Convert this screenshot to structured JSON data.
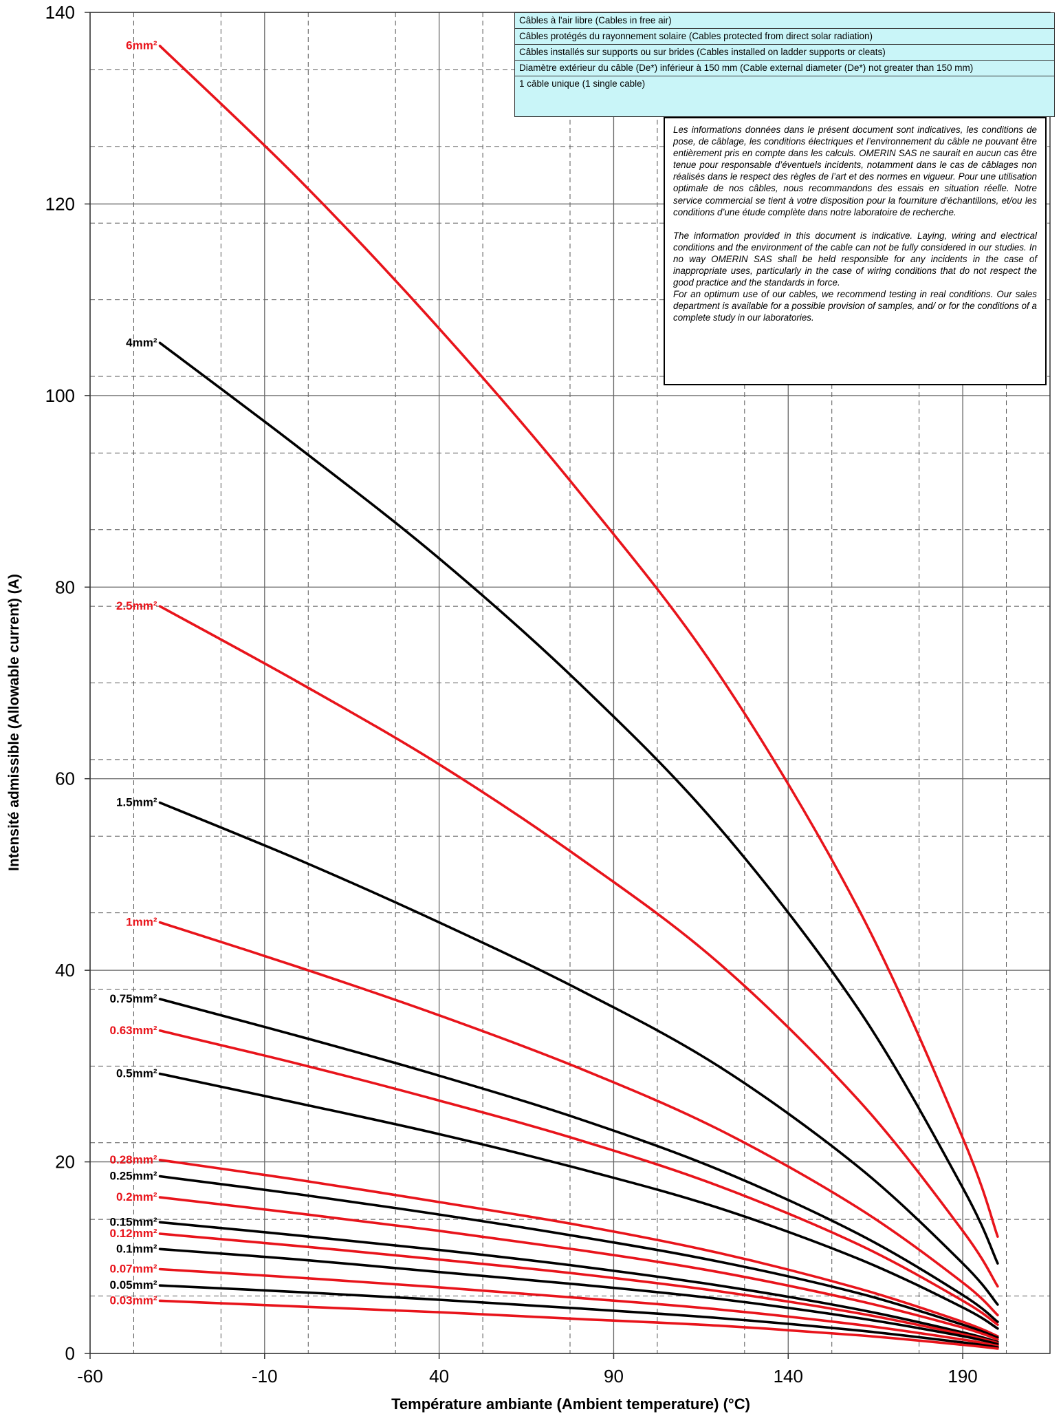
{
  "chart_data": {
    "type": "line",
    "xlabel": "Température ambiante (Ambient temperature) (°C)",
    "ylabel": "Intensité admissible (Allowable current) (A)",
    "xlim": [
      -60,
      215
    ],
    "ylim": [
      0,
      140
    ],
    "x_ticks": [
      -60,
      -10,
      40,
      90,
      140,
      190
    ],
    "y_ticks": [
      0,
      20,
      40,
      60,
      80,
      100,
      120,
      140
    ],
    "x_tick_labels": [
      "-60",
      "-10",
      "40",
      "90",
      "140",
      "190"
    ],
    "y_tick_labels": [
      "0",
      "20",
      "40",
      "60",
      "80",
      "100",
      "120",
      "140"
    ],
    "grid": true,
    "x": [
      -40,
      0,
      40,
      80,
      120,
      160,
      190,
      200
    ],
    "series": [
      {
        "name": "6mm²",
        "color": "#e8141b",
        "values": [
          136.5,
          122.5,
          107,
          90,
          71,
          46.5,
          22.5,
          12.2
        ]
      },
      {
        "name": "4mm²",
        "color": "#000000",
        "values": [
          105.5,
          94.5,
          83,
          70,
          55,
          36,
          17.3,
          9.4
        ]
      },
      {
        "name": "2.5mm²",
        "color": "#e8141b",
        "values": [
          78,
          70,
          61.5,
          51.8,
          40.8,
          26.5,
          12.8,
          7
        ]
      },
      {
        "name": "1.5mm²",
        "color": "#000000",
        "values": [
          57.5,
          51.5,
          45,
          38,
          30,
          19.5,
          9.4,
          5.1
        ]
      },
      {
        "name": "1mm²",
        "color": "#e8141b",
        "values": [
          45,
          40.3,
          35.3,
          29.8,
          23.4,
          15.2,
          7.4,
          4
        ]
      },
      {
        "name": "0.75mm²",
        "color": "#000000",
        "values": [
          37,
          33.1,
          29,
          24.5,
          19.2,
          12.5,
          6.1,
          3.3
        ]
      },
      {
        "name": "0.63mm²",
        "color": "#e8141b",
        "values": [
          33.7,
          30.2,
          26.4,
          22.3,
          17.5,
          11.4,
          5.5,
          3
        ]
      },
      {
        "name": "0.5mm²",
        "color": "#000000",
        "values": [
          29.2,
          26.1,
          22.9,
          19.3,
          15.2,
          9.9,
          4.8,
          2.6
        ]
      },
      {
        "name": "0.28mm²",
        "color": "#e8141b",
        "values": [
          20.2,
          18.1,
          15.8,
          13.4,
          10.5,
          6.8,
          3.3,
          1.8
        ]
      },
      {
        "name": "0.25mm²",
        "color": "#000000",
        "values": [
          18.5,
          16.6,
          14.5,
          12.2,
          9.6,
          6.3,
          3,
          1.65
        ]
      },
      {
        "name": "0.2mm²",
        "color": "#e8141b",
        "values": [
          16.3,
          14.6,
          12.8,
          10.8,
          8.5,
          5.5,
          2.7,
          1.45
        ]
      },
      {
        "name": "0.15mm²",
        "color": "#000000",
        "values": [
          13.7,
          12.3,
          10.8,
          9.1,
          7.1,
          4.6,
          2.2,
          1.2
        ]
      },
      {
        "name": "0.12mm²",
        "color": "#e8141b",
        "values": [
          12.5,
          11.2,
          9.8,
          8.3,
          6.5,
          4.2,
          2,
          1.1
        ]
      },
      {
        "name": "0.1mm²",
        "color": "#000000",
        "values": [
          10.9,
          9.8,
          8.5,
          7.2,
          5.7,
          3.7,
          1.8,
          0.97
        ]
      },
      {
        "name": "0.07mm²",
        "color": "#e8141b",
        "values": [
          8.8,
          7.9,
          6.9,
          5.8,
          4.6,
          3,
          1.45,
          0.78
        ]
      },
      {
        "name": "0.05mm²",
        "color": "#000000",
        "values": [
          7.1,
          6.4,
          5.6,
          4.7,
          3.7,
          2.4,
          1.15,
          0.63
        ]
      },
      {
        "name": "0.03mm²",
        "color": "#e8141b",
        "values": [
          5.5,
          4.9,
          4.3,
          3.6,
          2.9,
          1.9,
          0.9,
          0.5
        ]
      }
    ]
  },
  "info_box": {
    "rows": [
      "Câbles à l'air libre (Cables in free air)",
      "Câbles protégés du rayonnement solaire (Cables protected from direct solar radiation)",
      "Câbles installés sur supports ou sur brides (Cables installed on ladder supports or cleats)",
      "Diamètre extérieur du câble (De*) inférieur à 150 mm (Cable external diameter (De*) not greater than 150 mm)",
      "1 câble unique (1 single cable)"
    ]
  },
  "disclaimer": {
    "fr": "Les informations données dans le présent document sont indicatives, les conditions de pose, de câblage, les conditions électriques et l’environnement du câble ne pouvant être entièrement pris en compte dans les calculs. OMERIN SAS ne saurait en aucun cas être tenue pour responsable d’éventuels incidents, notamment dans le cas de câblages non réalisés dans le respect des règles de l’art et des normes en vigueur. Pour une utilisation optimale de nos câbles, nous recommandons des essais en situation réelle. Notre service commercial se tient à votre disposition pour la fourniture d’échantillons, et/ou les conditions d’une étude complète dans notre laboratoire de recherche.",
    "en1": "The information provided in this document is indicative. Laying, wiring and electrical conditions and the environment of the cable can not be fully considered in our studies. In no way OMERIN SAS shall be held responsible for any incidents in the case of inappropriate uses, particularly in the case of wiring conditions that do not respect the good practice and the standards in force.",
    "en2": "For an optimum use of our cables, we recommend testing in real conditions. Our sales department is available for a possible provision of samples, and/ or for the conditions of a complete study in our laboratories."
  }
}
